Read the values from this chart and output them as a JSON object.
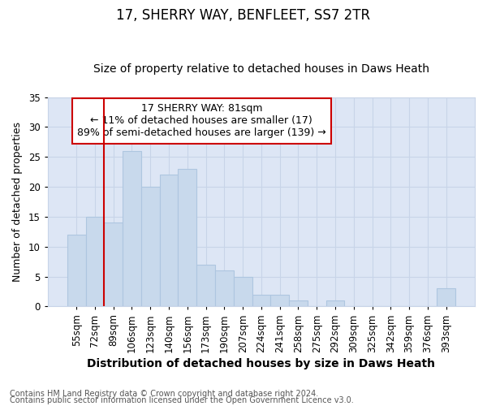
{
  "title1": "17, SHERRY WAY, BENFLEET, SS7 2TR",
  "title2": "Size of property relative to detached houses in Daws Heath",
  "xlabel": "Distribution of detached houses by size in Daws Heath",
  "ylabel": "Number of detached properties",
  "categories": [
    "55sqm",
    "72sqm",
    "89sqm",
    "106sqm",
    "123sqm",
    "140sqm",
    "156sqm",
    "173sqm",
    "190sqm",
    "207sqm",
    "224sqm",
    "241sqm",
    "258sqm",
    "275sqm",
    "292sqm",
    "309sqm",
    "325sqm",
    "342sqm",
    "359sqm",
    "376sqm",
    "393sqm"
  ],
  "values": [
    12,
    15,
    14,
    26,
    20,
    22,
    23,
    7,
    6,
    5,
    2,
    2,
    1,
    0,
    1,
    0,
    0,
    0,
    0,
    0,
    3
  ],
  "bar_color": "#c8d9ec",
  "bar_edge_color": "#aec6e0",
  "vline_x": 1.5,
  "vline_color": "#cc0000",
  "annotation_text": "17 SHERRY WAY: 81sqm\n← 11% of detached houses are smaller (17)\n89% of semi-detached houses are larger (139) →",
  "annotation_box_color": "#ffffff",
  "annotation_box_edge": "#cc0000",
  "ylim": [
    0,
    35
  ],
  "yticks": [
    0,
    5,
    10,
    15,
    20,
    25,
    30,
    35
  ],
  "grid_color": "#c8d4e8",
  "bg_color": "#dde6f5",
  "fig_bg_color": "#ffffff",
  "footer1": "Contains HM Land Registry data © Crown copyright and database right 2024.",
  "footer2": "Contains public sector information licensed under the Open Government Licence v3.0.",
  "title1_fontsize": 12,
  "title2_fontsize": 10,
  "xlabel_fontsize": 10,
  "ylabel_fontsize": 9,
  "tick_fontsize": 8.5,
  "footer_fontsize": 7,
  "ann_fontsize": 9
}
